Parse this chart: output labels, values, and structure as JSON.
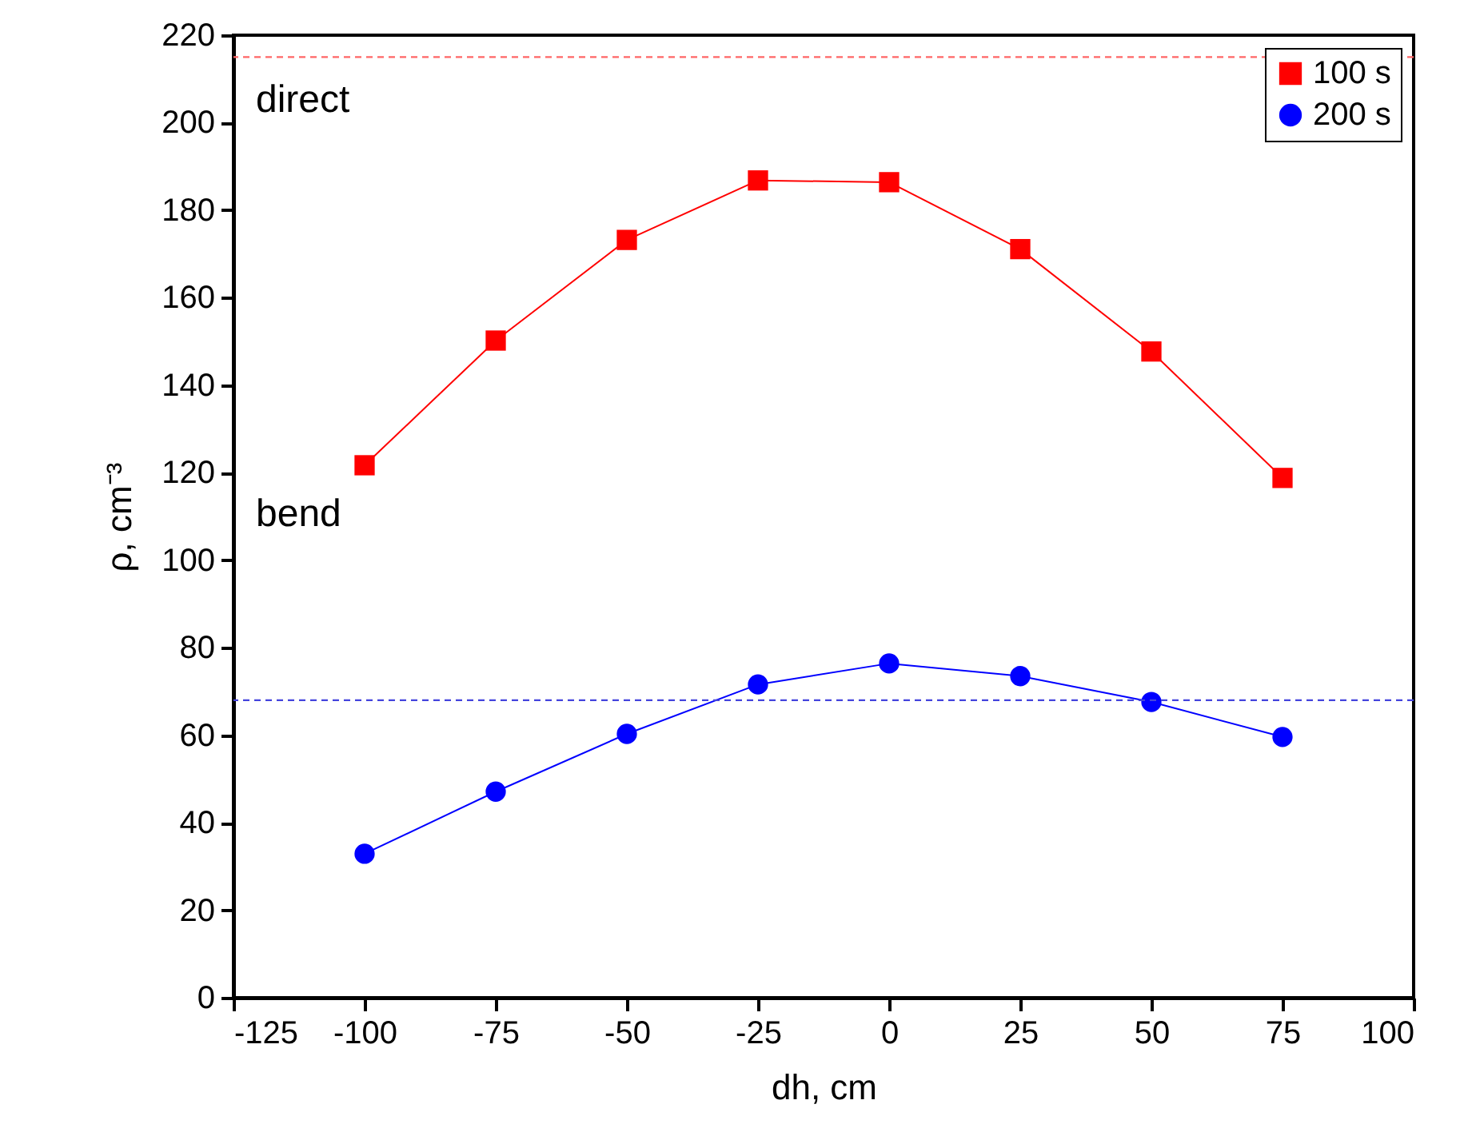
{
  "chart_data": {
    "type": "line",
    "xlabel": "dh, cm",
    "ylabel": "ρ, cm⁻³",
    "x": [
      -100,
      -75,
      -50,
      -25,
      0,
      25,
      50,
      75
    ],
    "series": [
      {
        "name": "100 s",
        "color": "#ff0000",
        "marker": "square",
        "values": [
          121.7,
          150.2,
          173.2,
          186.8,
          186.4,
          171.1,
          147.7,
          118.8
        ]
      },
      {
        "name": "200 s",
        "color": "#0000ff",
        "marker": "circle",
        "values": [
          32.9,
          47.1,
          60.3,
          71.6,
          76.4,
          73.5,
          67.6,
          59.6
        ]
      }
    ],
    "xlim": [
      -125,
      100
    ],
    "xticks": [
      -125,
      -100,
      -75,
      -50,
      -25,
      0,
      25,
      50,
      75,
      100
    ],
    "ylim": [
      0,
      220
    ],
    "yticks": [
      0,
      20,
      40,
      60,
      80,
      100,
      120,
      140,
      160,
      180,
      200,
      220
    ],
    "ref_lines": [
      {
        "axis": "y",
        "value": 215,
        "color": "#ff6666",
        "line_style": "dashed"
      },
      {
        "axis": "y",
        "value": 68,
        "color": "#4444dd",
        "line_style": "dashed"
      }
    ],
    "annotations": [
      "direct",
      "bend"
    ],
    "grid": false,
    "legend": "top right",
    "line_style": "solid"
  }
}
